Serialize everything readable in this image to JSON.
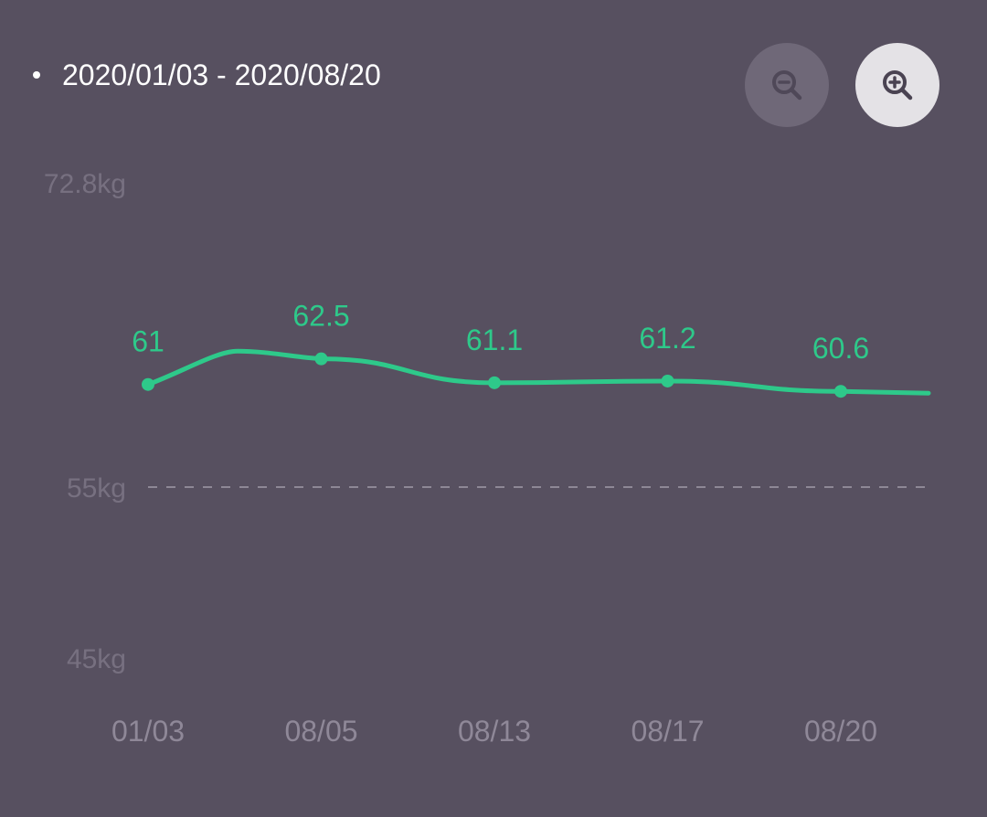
{
  "header": {
    "date_range": "2020/01/03 - 2020/08/20"
  },
  "controls": {
    "zoom_out": {
      "icon": "zoom-out-icon",
      "enabled": false
    },
    "zoom_in": {
      "icon": "zoom-in-icon",
      "enabled": true
    }
  },
  "colors": {
    "background": "#575060",
    "line": "#2ec98a",
    "label": "#2ec98a",
    "reference_line": "#8e8896",
    "axis_text": "#777080",
    "x_axis_text": "#8f8898"
  },
  "chart_data": {
    "type": "line",
    "title": "",
    "xlabel": "",
    "ylabel": "",
    "unit": "kg",
    "y_ticks": [
      "72.8kg",
      "55kg",
      "45kg"
    ],
    "y_tick_values": [
      72.8,
      55,
      45
    ],
    "ylim": [
      45,
      72.8
    ],
    "reference_line": 55,
    "categories": [
      "01/03",
      "08/05",
      "08/13",
      "08/17",
      "08/20"
    ],
    "series": [
      {
        "values": [
          61,
          62.5,
          61.1,
          61.2,
          60.6
        ],
        "labels": [
          "61",
          "62.5",
          "61.1",
          "61.2",
          "60.6"
        ]
      }
    ],
    "grid": false,
    "legend": "none"
  }
}
